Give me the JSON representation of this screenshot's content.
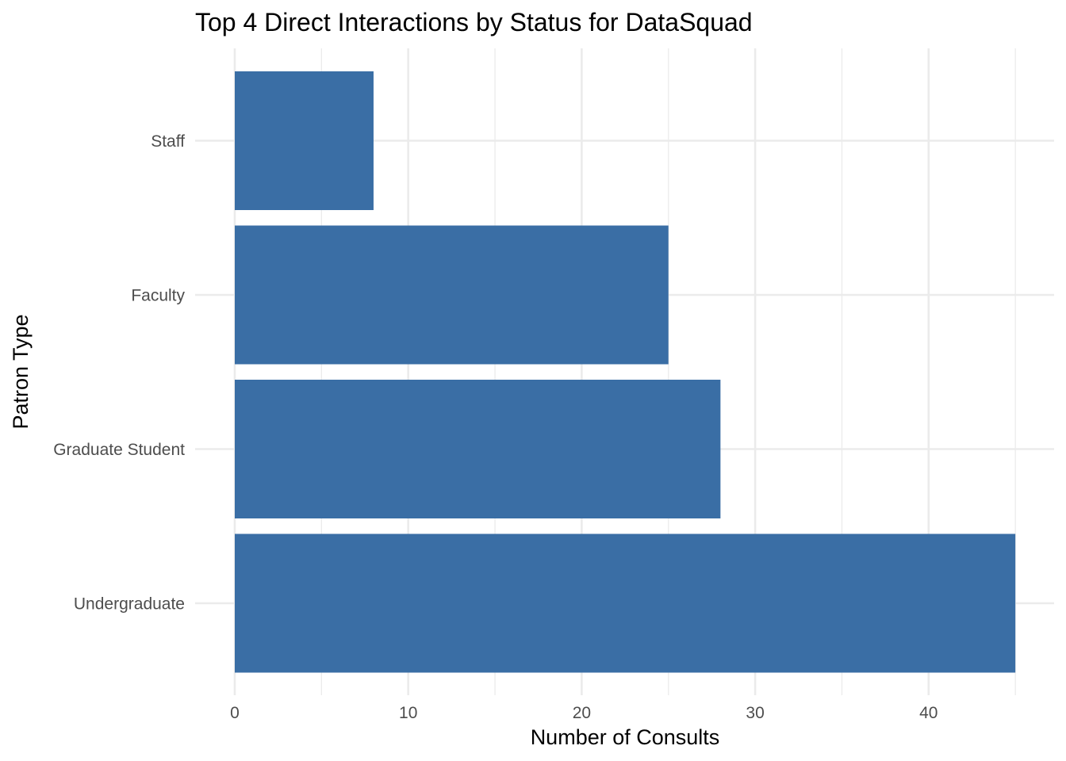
{
  "chart_data": {
    "type": "bar",
    "orientation": "horizontal",
    "title": "Top 4 Direct Interactions by Status for DataSquad",
    "xlabel": "Number of Consults",
    "ylabel": "Patron Type",
    "categories": [
      "Undergraduate",
      "Graduate Student",
      "Faculty",
      "Staff"
    ],
    "values": [
      45,
      28,
      25,
      8
    ],
    "xlim": [
      0,
      47.3
    ],
    "xticks": [
      0,
      10,
      20,
      30,
      40
    ],
    "grid": true,
    "bar_color": "#3a6ea5",
    "legend": "none"
  }
}
